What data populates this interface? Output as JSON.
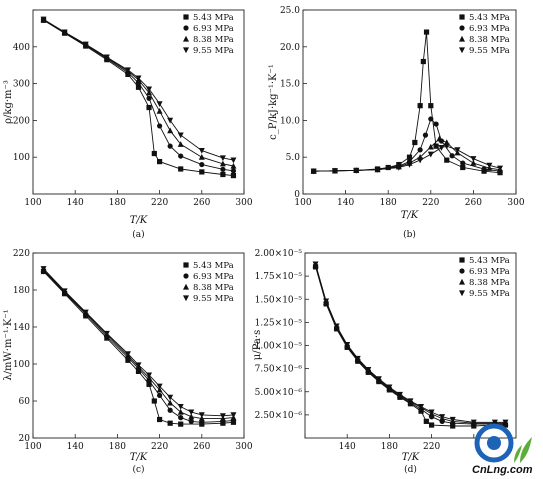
{
  "logo": {
    "text": "CnLng.com",
    "color": "#1d63b6",
    "accent": "#5cae3a"
  },
  "chart_data": [
    {
      "type": "line",
      "panel_label": "(a)",
      "xlabel": "T/K",
      "ylabel": "ρ/kg·m⁻³",
      "xlim": [
        100,
        300
      ],
      "ylim": [
        0,
        500
      ],
      "xticks": [
        100,
        140,
        180,
        220,
        260,
        300
      ],
      "yticks": [
        100,
        200,
        300,
        400,
        500
      ],
      "xtick_labels": [
        "100",
        "140",
        "180",
        "220",
        "260",
        "300"
      ],
      "ytick_labels": [
        "100",
        "200",
        "300",
        "400",
        ""
      ],
      "legend_position": "top-right",
      "series": [
        {
          "name": "5.43 MPa",
          "marker": "square",
          "x": [
            110,
            130,
            150,
            170,
            190,
            200,
            210,
            215,
            220,
            240,
            260,
            280,
            290
          ],
          "y": [
            472,
            437,
            402,
            365,
            325,
            290,
            235,
            110,
            88,
            68,
            60,
            53,
            50
          ]
        },
        {
          "name": "6.93 MPa",
          "marker": "circle",
          "x": [
            110,
            130,
            150,
            170,
            190,
            200,
            210,
            220,
            230,
            240,
            260,
            280,
            290
          ],
          "y": [
            473,
            438,
            404,
            368,
            330,
            302,
            260,
            185,
            130,
            103,
            80,
            67,
            63
          ]
        },
        {
          "name": "8.38 MPa",
          "marker": "triangle-up",
          "x": [
            110,
            130,
            150,
            170,
            190,
            200,
            210,
            220,
            230,
            240,
            260,
            280,
            290
          ],
          "y": [
            474,
            439,
            406,
            370,
            334,
            310,
            275,
            225,
            172,
            135,
            100,
            82,
            76
          ]
        },
        {
          "name": "9.55 MPa",
          "marker": "triangle-down",
          "x": [
            110,
            130,
            150,
            170,
            190,
            200,
            210,
            220,
            230,
            240,
            260,
            280,
            290
          ],
          "y": [
            475,
            440,
            407,
            372,
            337,
            315,
            285,
            245,
            200,
            160,
            118,
            98,
            92
          ]
        }
      ]
    },
    {
      "type": "line",
      "panel_label": "(b)",
      "xlabel": "T/K",
      "ylabel": "c_P/kJ·kg⁻¹·K⁻¹",
      "xlim": [
        100,
        300
      ],
      "ylim": [
        0,
        25
      ],
      "xticks": [
        100,
        140,
        180,
        220,
        260,
        300
      ],
      "yticks": [
        0,
        5,
        10,
        15,
        20,
        25
      ],
      "xtick_labels": [
        "100",
        "140",
        "180",
        "220",
        "260",
        "300"
      ],
      "ytick_labels": [
        "0",
        "5.0",
        "10.0",
        "15.0",
        "20.0",
        "25.0"
      ],
      "legend_position": "top-right",
      "series": [
        {
          "name": "5.43 MPa",
          "marker": "square",
          "x": [
            110,
            130,
            150,
            170,
            180,
            190,
            200,
            205,
            210,
            213,
            216,
            220,
            225,
            235,
            250,
            270,
            285
          ],
          "y": [
            3.1,
            3.15,
            3.2,
            3.4,
            3.6,
            4.0,
            5.0,
            7.0,
            12.0,
            18.0,
            22.0,
            12.0,
            6.5,
            4.6,
            3.6,
            3.1,
            2.9
          ]
        },
        {
          "name": "6.93 MPa",
          "marker": "circle",
          "x": [
            110,
            130,
            150,
            170,
            190,
            200,
            210,
            215,
            220,
            225,
            230,
            240,
            250,
            270,
            285
          ],
          "y": [
            3.1,
            3.15,
            3.2,
            3.35,
            3.8,
            4.4,
            6.0,
            8.0,
            10.2,
            9.5,
            7.2,
            5.2,
            4.2,
            3.4,
            3.1
          ]
        },
        {
          "name": "8.38 MPa",
          "marker": "triangle-up",
          "x": [
            110,
            130,
            150,
            170,
            190,
            200,
            210,
            220,
            228,
            235,
            245,
            260,
            275,
            285
          ],
          "y": [
            3.1,
            3.15,
            3.2,
            3.3,
            3.7,
            4.2,
            5.0,
            6.4,
            7.5,
            7.0,
            5.6,
            4.2,
            3.5,
            3.3
          ]
        },
        {
          "name": "9.55 MPa",
          "marker": "triangle-down",
          "x": [
            110,
            130,
            150,
            170,
            190,
            200,
            210,
            220,
            230,
            235,
            245,
            260,
            275,
            285
          ],
          "y": [
            3.1,
            3.15,
            3.2,
            3.3,
            3.6,
            4.0,
            4.6,
            5.4,
            6.3,
            6.5,
            6.0,
            4.8,
            3.9,
            3.5
          ]
        }
      ]
    },
    {
      "type": "line",
      "panel_label": "(c)",
      "xlabel": "T/K",
      "ylabel": "λ/mW·m⁻¹·K⁻¹",
      "xlim": [
        100,
        300
      ],
      "ylim": [
        20,
        220
      ],
      "xticks": [
        100,
        140,
        180,
        220,
        260,
        300
      ],
      "yticks": [
        20,
        60,
        100,
        140,
        180,
        220
      ],
      "xtick_labels": [
        "100",
        "140",
        "180",
        "220",
        "260",
        "300"
      ],
      "ytick_labels": [
        "20",
        "60",
        "100",
        "140",
        "180",
        "220"
      ],
      "legend_position": "top-right",
      "series": [
        {
          "name": "5.43 MPa",
          "marker": "square",
          "x": [
            110,
            130,
            150,
            170,
            190,
            200,
            210,
            215,
            220,
            230,
            240,
            260,
            280,
            290
          ],
          "y": [
            200,
            176,
            152,
            128,
            104,
            92,
            78,
            60,
            40,
            36,
            35,
            35,
            36,
            37
          ]
        },
        {
          "name": "6.93 MPa",
          "marker": "circle",
          "x": [
            110,
            130,
            150,
            170,
            190,
            200,
            210,
            220,
            230,
            240,
            250,
            260,
            280,
            290
          ],
          "y": [
            201,
            177,
            154,
            130,
            107,
            95,
            82,
            66,
            50,
            42,
            38,
            37,
            38,
            39
          ]
        },
        {
          "name": "8.38 MPa",
          "marker": "triangle-up",
          "x": [
            110,
            130,
            150,
            170,
            190,
            200,
            210,
            220,
            230,
            240,
            250,
            260,
            280,
            290
          ],
          "y": [
            202,
            178,
            155,
            132,
            109,
            97,
            85,
            72,
            58,
            48,
            43,
            41,
            41,
            42
          ]
        },
        {
          "name": "9.55 MPa",
          "marker": "triangle-down",
          "x": [
            110,
            130,
            150,
            170,
            190,
            200,
            210,
            220,
            230,
            240,
            250,
            260,
            280,
            290
          ],
          "y": [
            203,
            179,
            156,
            133,
            111,
            99,
            88,
            76,
            64,
            54,
            48,
            45,
            44,
            45
          ]
        }
      ]
    },
    {
      "type": "line",
      "panel_label": "(d)",
      "xlabel": "T/K",
      "ylabel": "μ/Pa·s",
      "xlim": [
        100,
        300
      ],
      "ylim": [
        0,
        2e-05
      ],
      "xticks": [
        100,
        140,
        180,
        220,
        260
      ],
      "yticks": [
        2.5e-06,
        5e-06,
        7.5e-06,
        1e-05,
        1.25e-05,
        1.5e-05,
        1.75e-05,
        2e-05
      ],
      "xtick_labels": [
        "",
        "140",
        "180",
        "220",
        ""
      ],
      "ytick_labels": [
        "2.50×10⁻⁶",
        "5.00×10⁻⁶",
        "7.50×10⁻⁶",
        "1.00×10⁻⁵",
        "1.25×10⁻⁵",
        "1.50×10⁻⁵",
        "1.75×10⁻⁵",
        "2.00×10⁻⁵"
      ],
      "legend_position": "top-right",
      "series": [
        {
          "name": "5.43 MPa",
          "marker": "square",
          "x": [
            110,
            120,
            130,
            140,
            150,
            160,
            170,
            180,
            190,
            200,
            210,
            215,
            220,
            240,
            260,
            280,
            290
          ],
          "y": [
            1.85e-05,
            1.45e-05,
            1.18e-05,
            9.8e-06,
            8.3e-06,
            7.1e-06,
            6.1e-06,
            5.2e-06,
            4.4e-06,
            3.7e-06,
            2.9e-06,
            1.8e-06,
            1.4e-06,
            1.3e-06,
            1.3e-06,
            1.4e-06,
            1.4e-06
          ]
        },
        {
          "name": "6.93 MPa",
          "marker": "circle",
          "x": [
            110,
            120,
            130,
            140,
            150,
            160,
            170,
            180,
            190,
            200,
            210,
            220,
            230,
            240,
            260,
            280,
            290
          ],
          "y": [
            1.86e-05,
            1.46e-05,
            1.19e-05,
            9.9e-06,
            8.4e-06,
            7.2e-06,
            6.2e-06,
            5.3e-06,
            4.5e-06,
            3.8e-06,
            3.1e-06,
            2.3e-06,
            1.8e-06,
            1.6e-06,
            1.5e-06,
            1.5e-06,
            1.5e-06
          ]
        },
        {
          "name": "8.38 MPa",
          "marker": "triangle-up",
          "x": [
            110,
            120,
            130,
            140,
            150,
            160,
            170,
            180,
            190,
            200,
            210,
            220,
            230,
            240,
            260,
            280,
            290
          ],
          "y": [
            1.87e-05,
            1.47e-05,
            1.2e-05,
            1e-05,
            8.5e-06,
            7.3e-06,
            6.3e-06,
            5.4e-06,
            4.6e-06,
            3.9e-06,
            3.3e-06,
            2.6e-06,
            2.1e-06,
            1.8e-06,
            1.6e-06,
            1.6e-06,
            1.6e-06
          ]
        },
        {
          "name": "9.55 MPa",
          "marker": "triangle-down",
          "x": [
            110,
            120,
            130,
            140,
            150,
            160,
            170,
            180,
            190,
            200,
            210,
            220,
            230,
            240,
            260,
            280,
            290
          ],
          "y": [
            1.88e-05,
            1.48e-05,
            1.21e-05,
            1.01e-05,
            8.6e-06,
            7.4e-06,
            6.4e-06,
            5.5e-06,
            4.7e-06,
            4e-06,
            3.4e-06,
            2.8e-06,
            2.3e-06,
            2e-06,
            1.7e-06,
            1.7e-06,
            1.7e-06
          ]
        }
      ]
    }
  ]
}
